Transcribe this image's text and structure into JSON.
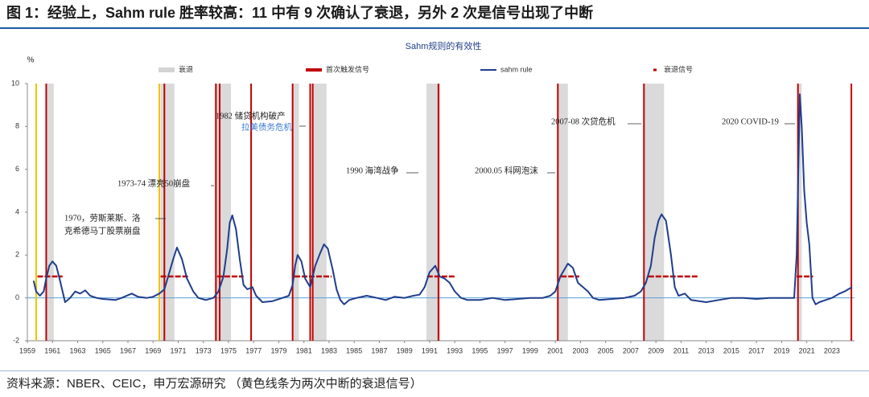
{
  "page_title": "图 1：经验上，Sahm rule 胜率较高：11 中有 9 次确认了衰退，另外 2 次是信号出现了中断",
  "source": "资料来源：NBER、CEIC，申万宏源研究  （黄色线条为两次中断的衰退信号）",
  "chart_data": {
    "type": "line",
    "title": "Sahm规则的有效性",
    "y_unit": "%",
    "xlim": [
      1959,
      2024.8
    ],
    "xticks": [
      1959,
      1961,
      1963,
      1965,
      1967,
      1969,
      1971,
      1973,
      1975,
      1977,
      1979,
      1981,
      1983,
      1985,
      1987,
      1989,
      1991,
      1993,
      1995,
      1997,
      1999,
      2001,
      2003,
      2005,
      2007,
      2009,
      2011,
      2013,
      2015,
      2017,
      2019,
      2021,
      2023
    ],
    "ylim": [
      -2,
      10
    ],
    "yticks": [
      -2,
      0,
      2,
      4,
      6,
      8,
      10
    ],
    "recessions": {
      "name": "衰退",
      "color": "#d4d4d4",
      "periods": [
        [
          1960.5,
          1961.1
        ],
        [
          1969.6,
          1970.7
        ],
        [
          1973.9,
          1975.2
        ],
        [
          1980.1,
          1980.6
        ],
        [
          1981.7,
          1982.8
        ],
        [
          1990.75,
          1991.85
        ],
        [
          2001.2,
          2002.0
        ],
        [
          2008.05,
          2009.65
        ],
        [
          2020.25,
          2020.6
        ]
      ]
    },
    "first_trigger": {
      "name": "首次触发信号",
      "color": "#c00000",
      "x": [
        1960.5,
        1969.9,
        1974.0,
        1974.3,
        1976.8,
        1980.1,
        1981.5,
        1981.7,
        1991.7,
        2001.2,
        2008.05,
        2020.3,
        2024.55
      ]
    },
    "interrupted_trigger": {
      "color": "#f2c200",
      "x": [
        1959.7,
        1969.5
      ]
    },
    "signals": {
      "name": "衰退信号",
      "color": "#c00000",
      "periods": [
        [
          1959.8,
          1961.8
        ],
        [
          1969.6,
          1971.8
        ],
        [
          1974.1,
          1976.2
        ],
        [
          1980.25,
          1983.2
        ],
        [
          1990.8,
          1993.05
        ],
        [
          2001.45,
          2002.9
        ],
        [
          2008.4,
          2012.4
        ],
        [
          2020.2,
          2021.5
        ]
      ],
      "values": [
        1,
        1,
        1,
        1,
        1,
        1,
        1,
        1
      ]
    },
    "series": [
      {
        "name": "sahm rule",
        "color": "#1f3e8c",
        "x": [
          1959.5,
          1959.7,
          1960.0,
          1960.3,
          1960.5,
          1960.75,
          1961.0,
          1961.3,
          1961.6,
          1962.0,
          1962.4,
          1962.8,
          1963.2,
          1963.6,
          1964.0,
          1964.5,
          1965.0,
          1966.0,
          1966.5,
          1967.3,
          1967.8,
          1968.5,
          1969.0,
          1969.5,
          1969.9,
          1970.2,
          1970.6,
          1970.9,
          1971.3,
          1971.7,
          1972.2,
          1972.6,
          1973.2,
          1973.8,
          1974.2,
          1974.6,
          1974.9,
          1975.1,
          1975.3,
          1975.6,
          1975.9,
          1976.2,
          1976.5,
          1976.9,
          1977.2,
          1977.7,
          1978.5,
          1979.3,
          1979.8,
          1980.1,
          1980.3,
          1980.5,
          1980.8,
          1981.1,
          1981.5,
          1981.9,
          1982.3,
          1982.6,
          1982.9,
          1983.3,
          1983.6,
          1983.9,
          1984.2,
          1984.6,
          1985.2,
          1986.0,
          1986.8,
          1987.5,
          1988.2,
          1989.0,
          1989.7,
          1990.2,
          1990.6,
          1991.0,
          1991.45,
          1991.8,
          1992.2,
          1992.6,
          1993.0,
          1993.5,
          1994.0,
          1995.0,
          1996.0,
          1997.0,
          1998.0,
          1999.0,
          2000.0,
          2000.6,
          2001.0,
          2001.4,
          2002.0,
          2002.4,
          2002.8,
          2003.2,
          2003.6,
          2004.0,
          2004.5,
          2005.5,
          2006.5,
          2007.3,
          2007.8,
          2008.2,
          2008.6,
          2008.9,
          2009.2,
          2009.45,
          2009.8,
          2010.2,
          2010.5,
          2010.8,
          2011.3,
          2011.8,
          2013.0,
          2014.0,
          2015.0,
          2016.0,
          2017.0,
          2018.0,
          2019.0,
          2020.0,
          2020.2,
          2020.45,
          2020.6,
          2020.8,
          2021.0,
          2021.2,
          2021.45,
          2021.7,
          2022.0,
          2022.5,
          2023.0,
          2023.6,
          2024.0,
          2024.6
        ],
        "values": [
          0.8,
          0.3,
          0.1,
          0.3,
          0.9,
          1.5,
          1.7,
          1.5,
          0.8,
          -0.2,
          0.0,
          0.3,
          0.2,
          0.35,
          0.1,
          0.0,
          -0.05,
          -0.1,
          0.0,
          0.2,
          0.05,
          0.0,
          0.05,
          0.2,
          0.4,
          1.0,
          1.8,
          2.35,
          1.8,
          0.9,
          0.3,
          0.0,
          -0.1,
          0.0,
          0.3,
          1.0,
          2.3,
          3.5,
          3.85,
          3.2,
          1.8,
          0.6,
          0.4,
          0.5,
          0.1,
          -0.2,
          -0.15,
          0.0,
          0.1,
          0.6,
          1.5,
          2.0,
          1.7,
          0.9,
          0.5,
          1.5,
          2.1,
          2.5,
          2.3,
          1.3,
          0.4,
          -0.1,
          -0.3,
          -0.1,
          0.0,
          0.1,
          0.0,
          -0.1,
          0.05,
          0.0,
          0.1,
          0.15,
          0.5,
          1.2,
          1.5,
          1.0,
          0.9,
          0.7,
          0.3,
          0.0,
          -0.1,
          -0.1,
          0.0,
          -0.1,
          -0.05,
          0.0,
          0.0,
          0.1,
          0.3,
          1.0,
          1.6,
          1.4,
          0.7,
          0.5,
          0.3,
          0.0,
          -0.1,
          -0.05,
          0.0,
          0.1,
          0.3,
          0.7,
          1.5,
          2.8,
          3.6,
          3.9,
          3.6,
          2.0,
          0.5,
          0.1,
          0.2,
          -0.1,
          -0.2,
          -0.1,
          0.0,
          0.0,
          -0.05,
          0.0,
          0.0,
          0.0,
          2.0,
          9.5,
          8.0,
          5.0,
          3.5,
          2.5,
          0.0,
          -0.3,
          -0.2,
          -0.1,
          0.0,
          0.2,
          0.3,
          0.5
        ]
      }
    ],
    "annotations": [
      "1970，劳斯莱斯、洛",
      "克希德马丁股票崩盘",
      "1973-74 漂亮50崩盘",
      "1982 储贷机构破产",
      "拉美债务危机",
      "1990 海湾战争",
      "2000.05 科网泡沫",
      "2007-08 次贷危机",
      "2020 COVID-19"
    ]
  }
}
